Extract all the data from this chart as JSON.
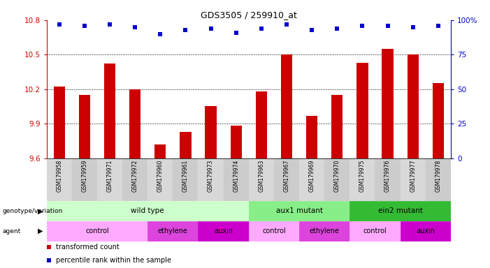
{
  "title": "GDS3505 / 259910_at",
  "samples": [
    "GSM179958",
    "GSM179959",
    "GSM179971",
    "GSM179972",
    "GSM179960",
    "GSM179961",
    "GSM179973",
    "GSM179974",
    "GSM179963",
    "GSM179967",
    "GSM179969",
    "GSM179970",
    "GSM179975",
    "GSM179976",
    "GSM179977",
    "GSM179978"
  ],
  "bar_values": [
    10.22,
    10.15,
    10.42,
    10.2,
    9.72,
    9.83,
    10.05,
    9.88,
    10.18,
    10.5,
    9.97,
    10.15,
    10.43,
    10.55,
    10.5,
    10.25
  ],
  "percentile_values": [
    97,
    96,
    97,
    95,
    90,
    93,
    94,
    91,
    94,
    97,
    93,
    94,
    96,
    96,
    95,
    96
  ],
  "ylim_left": [
    9.6,
    10.8
  ],
  "ylim_right": [
    0,
    100
  ],
  "yticks_left": [
    9.6,
    9.9,
    10.2,
    10.5,
    10.8
  ],
  "yticks_right": [
    0,
    25,
    50,
    75,
    100
  ],
  "bar_color": "#cc0000",
  "dot_color": "#0000cc",
  "bg_color": "#ffffff",
  "chart_bg": "#ffffff",
  "label_bg": "#d4d4d4",
  "genotype_groups": [
    {
      "label": "wild type",
      "start": 0,
      "end": 8,
      "color": "#ccffcc"
    },
    {
      "label": "aux1 mutant",
      "start": 8,
      "end": 12,
      "color": "#88ee88"
    },
    {
      "label": "ein2 mutant",
      "start": 12,
      "end": 16,
      "color": "#33bb33"
    }
  ],
  "agent_groups": [
    {
      "label": "control",
      "start": 0,
      "end": 4,
      "color": "#ffaaff"
    },
    {
      "label": "ethylene",
      "start": 4,
      "end": 6,
      "color": "#dd44dd"
    },
    {
      "label": "auxin",
      "start": 6,
      "end": 8,
      "color": "#cc00cc"
    },
    {
      "label": "control",
      "start": 8,
      "end": 10,
      "color": "#ffaaff"
    },
    {
      "label": "ethylene",
      "start": 10,
      "end": 12,
      "color": "#dd44dd"
    },
    {
      "label": "control",
      "start": 12,
      "end": 14,
      "color": "#ffaaff"
    },
    {
      "label": "auxin",
      "start": 14,
      "end": 16,
      "color": "#cc00cc"
    }
  ],
  "legend_items": [
    {
      "label": "transformed count",
      "color": "#cc0000"
    },
    {
      "label": "percentile rank within the sample",
      "color": "#0000cc"
    }
  ],
  "left_labels": [
    {
      "text": "genotype/variation",
      "row": "geno"
    },
    {
      "text": "agent",
      "row": "agent"
    }
  ]
}
